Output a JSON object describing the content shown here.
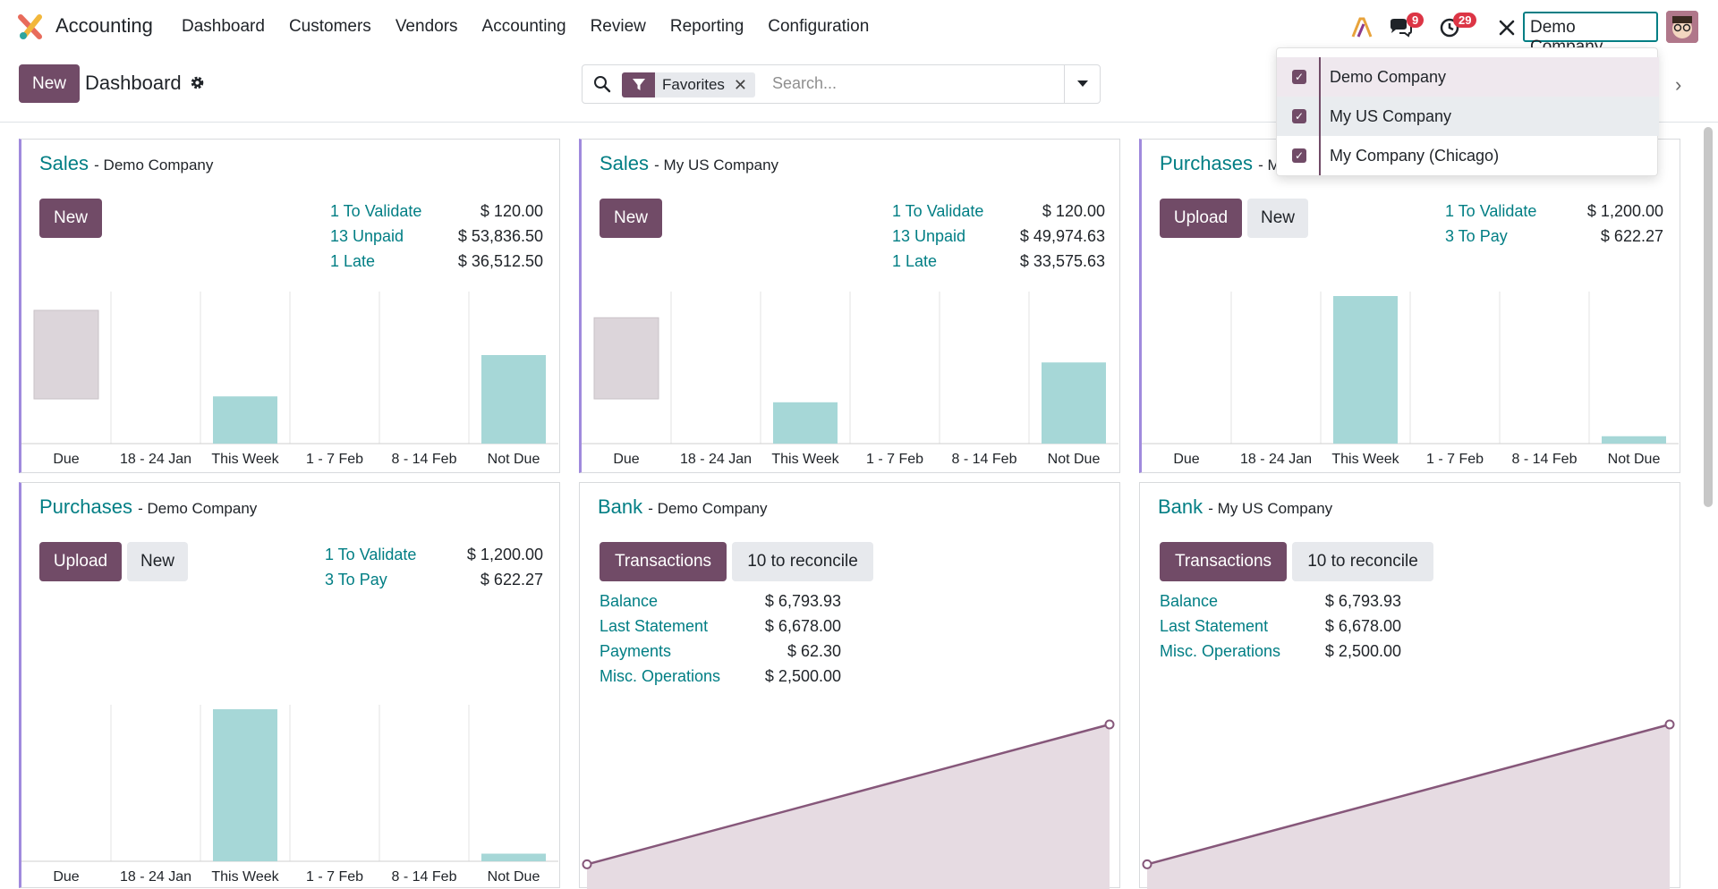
{
  "app": {
    "name": "Accounting"
  },
  "menu": [
    "Dashboard",
    "Customers",
    "Vendors",
    "Accounting",
    "Review",
    "Reporting",
    "Configuration"
  ],
  "systray": {
    "messages_count": "9",
    "activity_count": "29",
    "company": "Demo Company"
  },
  "control": {
    "new_label": "New",
    "title": "Dashboard",
    "facet_label": "Favorites",
    "search_placeholder": "Search..."
  },
  "company_dropdown": [
    "Demo Company",
    "My US Company",
    "My Company (Chicago)"
  ],
  "week_labels": [
    "Due",
    "18 - 24 Jan",
    "This Week",
    "1 - 7 Feb",
    "8 - 14 Feb",
    "Not Due"
  ],
  "panels": {
    "sales_demo": {
      "title": "Sales",
      "company": "- Demo Company",
      "new_label": "New",
      "stats": [
        [
          "1 To Validate",
          "$ 120.00"
        ],
        [
          "13 Unpaid",
          "$ 53,836.50"
        ],
        [
          "1 Late",
          "$ 36,512.50"
        ]
      ]
    },
    "sales_us": {
      "title": "Sales",
      "company": "- My US Company",
      "new_label": "New",
      "stats": [
        [
          "1 To Validate",
          "$ 120.00"
        ],
        [
          "13 Unpaid",
          "$ 49,974.63"
        ],
        [
          "1 Late",
          "$ 33,575.63"
        ]
      ]
    },
    "purch_us": {
      "title": "Purchases",
      "company": "- M",
      "upload_label": "Upload",
      "new_label": "New",
      "stats": [
        [
          "1 To Validate",
          "$ 1,200.00"
        ],
        [
          "3 To Pay",
          "$ 622.27"
        ]
      ]
    },
    "purch_demo": {
      "title": "Purchases",
      "company": "- Demo Company",
      "upload_label": "Upload",
      "new_label": "New",
      "stats": [
        [
          "1 To Validate",
          "$ 1,200.00"
        ],
        [
          "3 To Pay",
          "$ 622.27"
        ]
      ]
    },
    "bank_demo": {
      "title": "Bank",
      "company": "- Demo Company",
      "transactions_label": "Transactions",
      "reconcile_label": "10 to reconcile",
      "stats": [
        [
          "Balance",
          "$ 6,793.93"
        ],
        [
          "Last Statement",
          "$ 6,678.00"
        ],
        [
          "Payments",
          "$ 62.30"
        ],
        [
          "Misc. Operations",
          "$ 2,500.00"
        ]
      ]
    },
    "bank_us": {
      "title": "Bank",
      "company": "- My US Company",
      "transactions_label": "Transactions",
      "reconcile_label": "10 to reconcile",
      "stats": [
        [
          "Balance",
          "$ 6,793.93"
        ],
        [
          "Last Statement",
          "$ 6,678.00"
        ],
        [
          "Misc. Operations",
          "$ 2,500.00"
        ]
      ]
    }
  },
  "colors": {
    "primary": "#714b67",
    "teal": "#017e84",
    "bar_teal": "#a6d7d7",
    "bar_grey": "#dcd5da",
    "line": "#86577a",
    "fill": "#e6dbe2"
  },
  "chart_data": [
    {
      "type": "bar",
      "name": "sales_demo",
      "categories": [
        "Due",
        "18 - 24 Jan",
        "This Week",
        "1 - 7 Feb",
        "8 - 14 Feb",
        "Not Due"
      ],
      "values": [
        0.6,
        0,
        0.32,
        0,
        0,
        0.6
      ],
      "value_types": [
        "past",
        "",
        "future",
        "",
        "",
        "future"
      ]
    },
    {
      "type": "bar",
      "name": "sales_us",
      "categories": [
        "Due",
        "18 - 24 Jan",
        "This Week",
        "1 - 7 Feb",
        "8 - 14 Feb",
        "Not Due"
      ],
      "values": [
        0.55,
        0,
        0.28,
        0,
        0,
        0.55
      ],
      "value_types": [
        "past",
        "",
        "future",
        "",
        "",
        "future"
      ]
    },
    {
      "type": "bar",
      "name": "purch_us",
      "categories": [
        "Due",
        "18 - 24 Jan",
        "This Week",
        "1 - 7 Feb",
        "8 - 14 Feb",
        "Not Due"
      ],
      "values": [
        0,
        0,
        1.0,
        0,
        0,
        0.05
      ],
      "value_types": [
        "",
        "",
        "future",
        "",
        "",
        "future"
      ]
    },
    {
      "type": "bar",
      "name": "purch_demo",
      "categories": [
        "Due",
        "18 - 24 Jan",
        "This Week",
        "1 - 7 Feb",
        "8 - 14 Feb",
        "Not Due"
      ],
      "values": [
        0,
        0,
        1.0,
        0,
        0,
        0.05
      ],
      "value_types": [
        "",
        "",
        "future",
        "",
        "",
        "future"
      ]
    },
    {
      "type": "area",
      "name": "bank_demo",
      "x": [
        0,
        1
      ],
      "y": [
        0.15,
        1.0
      ]
    },
    {
      "type": "area",
      "name": "bank_us",
      "x": [
        0,
        1
      ],
      "y": [
        0.15,
        1.0
      ]
    }
  ]
}
